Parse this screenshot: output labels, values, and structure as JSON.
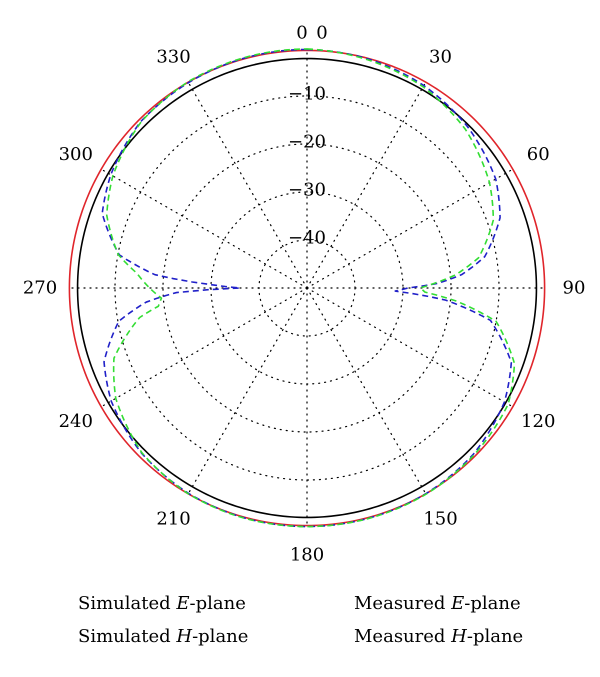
{
  "chart_data": {
    "type": "polar-line",
    "angle_tick_labels": [
      "0",
      "30",
      "60",
      "90",
      "120",
      "150",
      "180",
      "210",
      "240",
      "270",
      "300",
      "330"
    ],
    "radial_tick_labels": [
      "0",
      "-10",
      "-20",
      "-30",
      "-40"
    ],
    "r_range_db": [
      -50,
      0
    ],
    "grid": true,
    "legend_position": "bottom",
    "series": [
      {
        "name": "Simulated E-plane",
        "name_parts": [
          "Simulated ",
          "E",
          "-plane"
        ],
        "color": "#2020c8",
        "style": "dashed",
        "angles_deg": [
          0,
          15,
          30,
          45,
          60,
          70,
          80,
          85,
          88,
          90,
          92,
          95,
          100,
          110,
          120,
          135,
          150,
          165,
          180,
          195,
          210,
          225,
          240,
          250,
          260,
          265,
          268,
          270,
          272,
          275,
          280,
          290,
          300,
          315,
          330,
          345,
          360
        ],
        "values_db": [
          -0.3,
          -0.6,
          -1.3,
          -2.6,
          -4.6,
          -7.2,
          -12.4,
          -17.6,
          -22.8,
          -29,
          -31.6,
          -21,
          -11.2,
          -4.7,
          -2.5,
          -1.0,
          -0.5,
          -0.35,
          -0.3,
          -0.35,
          -0.6,
          -1.3,
          -2.9,
          -5.0,
          -10.2,
          -16.4,
          -22.8,
          -36,
          -30,
          -18.2,
          -10.3,
          -4.6,
          -2.8,
          -1.0,
          -0.6,
          -0.35,
          -0.3
        ]
      },
      {
        "name": "Simulated H-plane",
        "name_parts": [
          "Simulated ",
          "H",
          "-plane"
        ],
        "color": "#000000",
        "style": "solid",
        "angles_deg": [
          0,
          90,
          180,
          270,
          360
        ],
        "values_db": [
          -2.2,
          -2.2,
          -2.2,
          -2.2,
          -2.2
        ]
      },
      {
        "name": "Measured E-plane",
        "name_parts": [
          "Measured ",
          "E",
          "-plane"
        ],
        "color": "#33dd33",
        "style": "dashed",
        "angles_deg": [
          0,
          15,
          30,
          45,
          60,
          70,
          80,
          85,
          88,
          90,
          92,
          95,
          100,
          110,
          120,
          135,
          150,
          165,
          180,
          195,
          210,
          225,
          240,
          250,
          260,
          263,
          266,
          270,
          275,
          280,
          290,
          300,
          315,
          330,
          345,
          360
        ],
        "values_db": [
          -0.2,
          -0.8,
          -1.6,
          -3.3,
          -6.1,
          -8.7,
          -13.7,
          -19.0,
          -23.6,
          -26.4,
          -25.4,
          -18.8,
          -10.0,
          -4.0,
          -1.6,
          -0.8,
          -0.4,
          -0.3,
          -0.3,
          -0.3,
          -0.5,
          -1.4,
          -4.0,
          -7.2,
          -14.6,
          -18.8,
          -19.6,
          -17.2,
          -14.4,
          -10.1,
          -5.6,
          -3.3,
          -1.1,
          -0.4,
          -0.25,
          -0.2
        ]
      },
      {
        "name": "Measured H-plane",
        "name_parts": [
          "Measured ",
          "H",
          "-plane"
        ],
        "color": "#e0252b",
        "style": "solid",
        "angles_deg": [
          0,
          90,
          180,
          270,
          360
        ],
        "values_db": [
          -0.5,
          -0.5,
          -0.5,
          -0.5,
          -0.5
        ]
      }
    ]
  }
}
